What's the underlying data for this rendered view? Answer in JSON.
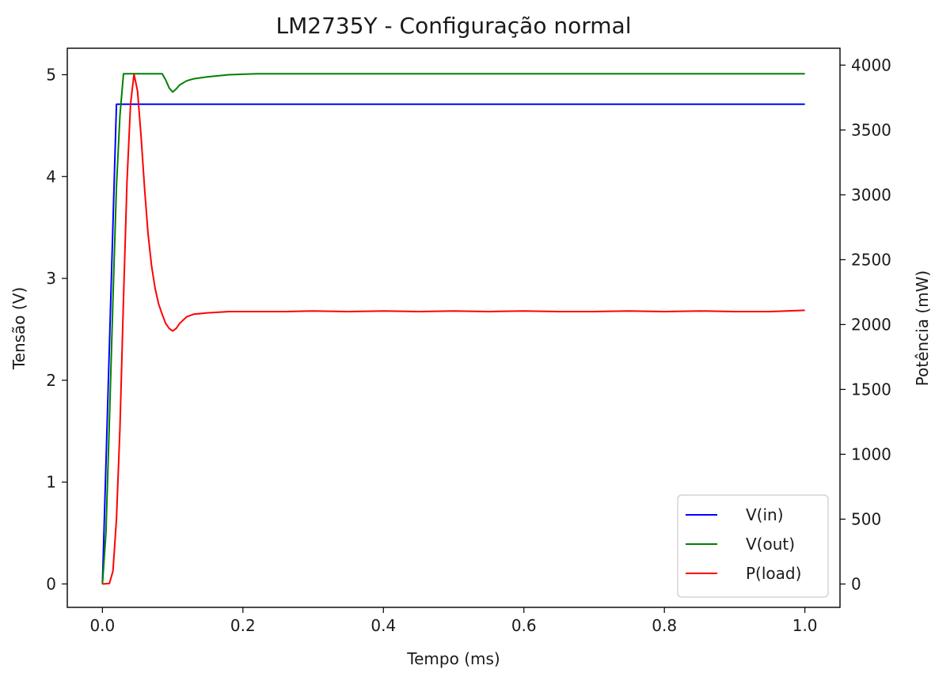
{
  "chart_data": {
    "type": "line",
    "title": "LM2735Y - Configuração normal",
    "xlabel": "Tempo (ms)",
    "ylabel": "Tensão (V)",
    "y2label": "Potência (mW)",
    "xlim": [
      -0.05,
      1.05
    ],
    "ylim": [
      -0.23,
      5.26
    ],
    "y2lim": [
      -180,
      4130
    ],
    "xticks": [
      0.0,
      0.2,
      0.4,
      0.6,
      0.8,
      1.0
    ],
    "xtick_labels": [
      "0.0",
      "0.2",
      "0.4",
      "0.6",
      "0.8",
      "1.0"
    ],
    "yticks": [
      0,
      1,
      2,
      3,
      4,
      5
    ],
    "ytick_labels": [
      "0",
      "1",
      "2",
      "3",
      "4",
      "5"
    ],
    "y2ticks": [
      0,
      500,
      1000,
      1500,
      2000,
      2500,
      3000,
      3500,
      4000
    ],
    "y2tick_labels": [
      "0",
      "500",
      "1000",
      "1500",
      "2000",
      "2500",
      "3000",
      "3500",
      "4000"
    ],
    "grid": false,
    "legend": "lower right",
    "series": [
      {
        "name": "V(in)",
        "axis": "left",
        "color": "#0000ff",
        "x": [
          0.0,
          0.02,
          1.0
        ],
        "y": [
          0.0,
          4.71,
          4.71
        ]
      },
      {
        "name": "V(out)",
        "axis": "left",
        "color": "#008000",
        "x": [
          0.0,
          0.005,
          0.01,
          0.015,
          0.02,
          0.025,
          0.03,
          0.04,
          0.06,
          0.085,
          0.09,
          0.095,
          0.1,
          0.105,
          0.11,
          0.12,
          0.13,
          0.15,
          0.18,
          0.22,
          0.3,
          0.5,
          0.75,
          1.0
        ],
        "y": [
          0.0,
          0.5,
          1.6,
          2.8,
          3.9,
          4.6,
          5.01,
          5.01,
          5.01,
          5.01,
          4.95,
          4.87,
          4.83,
          4.86,
          4.9,
          4.94,
          4.96,
          4.98,
          5.0,
          5.01,
          5.01,
          5.01,
          5.01,
          5.01
        ]
      },
      {
        "name": "P(load)",
        "axis": "right",
        "color": "#ff0000",
        "x": [
          0.0,
          0.01,
          0.015,
          0.02,
          0.025,
          0.03,
          0.035,
          0.04,
          0.045,
          0.05,
          0.055,
          0.06,
          0.065,
          0.07,
          0.075,
          0.08,
          0.085,
          0.09,
          0.095,
          0.1,
          0.105,
          0.11,
          0.12,
          0.13,
          0.15,
          0.18,
          0.22,
          0.26,
          0.3,
          0.35,
          0.4,
          0.45,
          0.5,
          0.55,
          0.6,
          0.65,
          0.7,
          0.75,
          0.8,
          0.85,
          0.9,
          0.95,
          1.0
        ],
        "y": [
          0,
          5,
          100,
          500,
          1200,
          2200,
          3100,
          3700,
          3930,
          3800,
          3450,
          3050,
          2700,
          2450,
          2280,
          2160,
          2080,
          2010,
          1970,
          1950,
          1970,
          2010,
          2060,
          2080,
          2090,
          2100,
          2100,
          2100,
          2105,
          2100,
          2105,
          2100,
          2105,
          2100,
          2105,
          2100,
          2100,
          2105,
          2100,
          2105,
          2100,
          2100,
          2110
        ]
      }
    ]
  }
}
